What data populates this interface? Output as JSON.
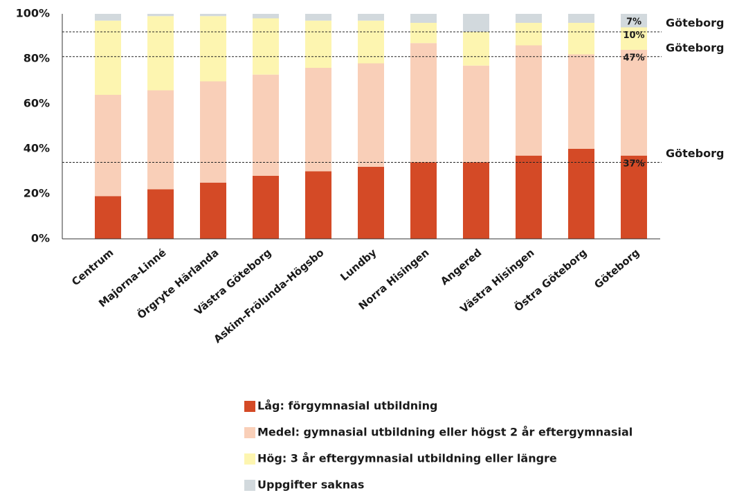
{
  "chart_data": {
    "type": "stacked_bar",
    "categories": [
      "Centrum",
      "Majorna-Linné",
      "Örgryte Härlanda",
      "Västra Göteborg",
      "Askim-Frölunda-Högsbo",
      "Lundby",
      "Norra Hisingen",
      "Angered",
      "Västra Hisingen",
      "Östra Göteborg",
      "Göteborg"
    ],
    "series": [
      {
        "name": "Låg: förgymnasial utbildning",
        "color": "#d44a26",
        "values": [
          19,
          22,
          25,
          28,
          30,
          32,
          34,
          34,
          37,
          40,
          37
        ],
        "value_labels": [
          null,
          null,
          null,
          null,
          null,
          null,
          null,
          null,
          null,
          null,
          "37%"
        ]
      },
      {
        "name": "Medel: gymnasial utbildning eller högst 2 år eftergymnasial",
        "color": "#f9cfb8",
        "values": [
          45,
          44,
          45,
          45,
          46,
          46,
          53,
          43,
          49,
          42,
          47
        ],
        "value_labels": [
          null,
          null,
          null,
          null,
          null,
          null,
          null,
          null,
          null,
          null,
          "47%"
        ]
      },
      {
        "name": "Hög: 3 år eftergymnasial utbildning eller längre",
        "color": "#fdf5b0",
        "values": [
          33,
          33,
          29,
          25,
          21,
          19,
          9,
          15,
          10,
          14,
          10
        ],
        "value_labels": [
          null,
          null,
          null,
          null,
          null,
          null,
          null,
          null,
          null,
          null,
          "10%"
        ]
      },
      {
        "name": "Uppgifter saknas",
        "color": "#d2d9dd",
        "values": [
          3,
          1,
          1,
          2,
          3,
          3,
          4,
          8,
          4,
          4,
          7
        ],
        "value_labels": [
          null,
          null,
          null,
          null,
          null,
          null,
          null,
          null,
          null,
          null,
          "7%"
        ]
      }
    ],
    "reference_lines": [
      {
        "value": 34,
        "label": "Göteborg"
      },
      {
        "value": 81,
        "label": "Göteborg"
      },
      {
        "value": 92,
        "label": "Göteborg"
      }
    ],
    "ylim": [
      0,
      100
    ],
    "yticks": [
      {
        "value": 0,
        "label": "0%"
      },
      {
        "value": 20,
        "label": "20%"
      },
      {
        "value": 40,
        "label": "40%"
      },
      {
        "value": 60,
        "label": "60%"
      },
      {
        "value": 80,
        "label": "80%"
      },
      {
        "value": 100,
        "label": "100%"
      }
    ]
  }
}
